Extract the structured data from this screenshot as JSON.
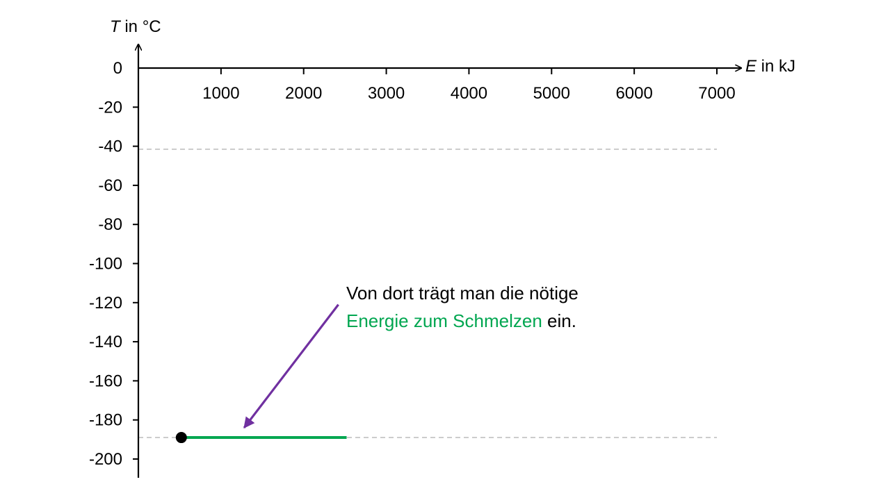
{
  "chart_data": {
    "type": "line",
    "xlabel_var": "E",
    "xlabel_unit": "in kJ",
    "ylabel_var": "T",
    "ylabel_unit": "in °C",
    "xlim": [
      0,
      7000
    ],
    "ylim": [
      -210,
      0
    ],
    "x_ticks": [
      1000,
      2000,
      3000,
      4000,
      5000,
      6000,
      7000
    ],
    "y_ticks": [
      0,
      -20,
      -40,
      -60,
      -80,
      -100,
      -120,
      -140,
      -160,
      -180,
      -200
    ],
    "reference_lines": [
      {
        "y": -41.5,
        "style": "dashed",
        "color": "#bbbbbb"
      },
      {
        "y": -189,
        "style": "dashed",
        "color": "#bbbbbb"
      }
    ],
    "start_point": {
      "x": 520,
      "y": -189,
      "color": "#000000"
    },
    "series": [
      {
        "x": [
          520,
          2520
        ],
        "y": [
          -189,
          -189
        ],
        "color": "#00a650"
      }
    ],
    "arrow": {
      "from": {
        "x": 2420,
        "y": -121
      },
      "to": {
        "x": 1280,
        "y": -184
      },
      "color": "#7030a0"
    }
  },
  "annotation": {
    "line1": "Von dort trägt man die nötige",
    "highlight": "Energie zum Schmelzen",
    "line2_rest": " ein.",
    "highlight_color": "#00a650"
  }
}
